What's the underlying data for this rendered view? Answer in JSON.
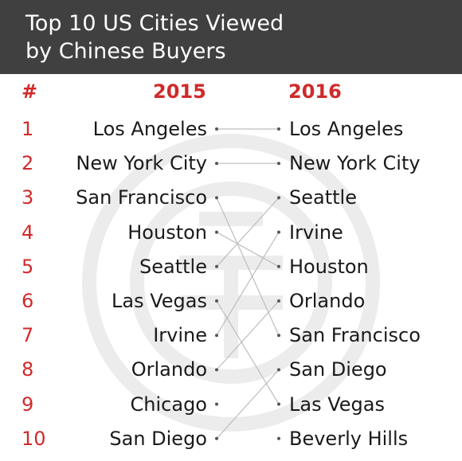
{
  "title_lines": [
    "Top 10 US Cities Viewed",
    "by Chinese Buyers"
  ],
  "colors": {
    "header_bg": "#404040",
    "accent_red": "#d02a2a",
    "line": "#bdbdbd",
    "text": "#1a1a1a"
  },
  "chart_data": {
    "type": "table",
    "title": "Top 10 US Cities Viewed by Chinese Buyers",
    "columns": [
      "#",
      "2015",
      "2016"
    ],
    "ranks": [
      "1",
      "2",
      "3",
      "4",
      "5",
      "6",
      "7",
      "8",
      "9",
      "10"
    ],
    "cities_2015": [
      "Los Angeles",
      "New York City",
      "San Francisco",
      "Houston",
      "Seattle",
      "Las Vegas",
      "Irvine",
      "Orlando",
      "Chicago",
      "San Diego"
    ],
    "cities_2016": [
      "Los Angeles",
      "New York City",
      "Seattle",
      "Irvine",
      "Houston",
      "Orlando",
      "San Francisco",
      "San Diego",
      "Las Vegas",
      "Beverly Hills"
    ]
  }
}
